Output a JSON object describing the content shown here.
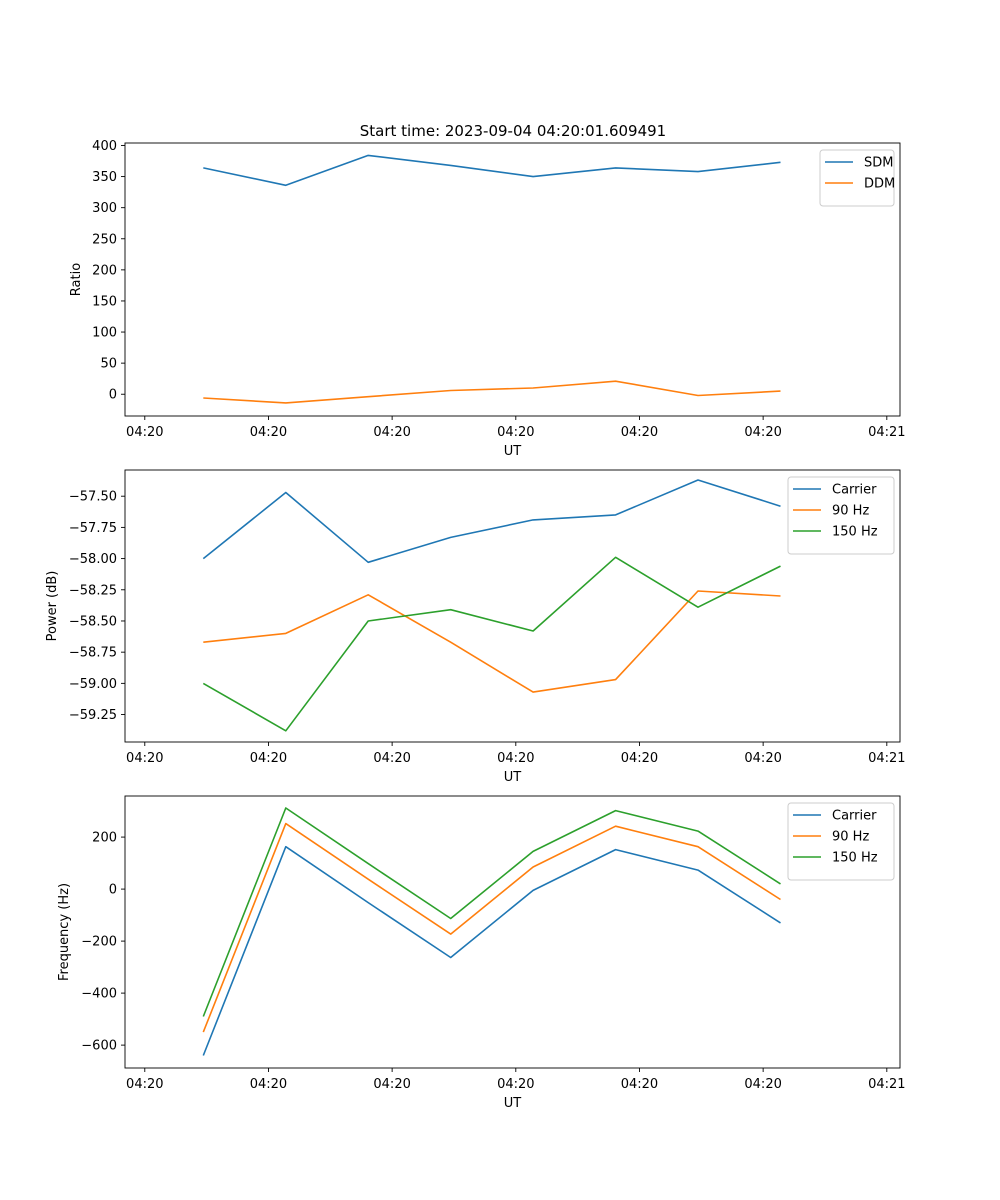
{
  "title": "Start time: 2023-09-04 04:20:01.609491",
  "colors": {
    "blue": "#1f77b4",
    "orange": "#ff7f0e",
    "green": "#2ca02c"
  },
  "chart_data": [
    {
      "type": "line",
      "xlabel": "UT",
      "ylabel": "Ratio",
      "xticks": [
        "04:20",
        "04:20",
        "04:20",
        "04:20",
        "04:20",
        "04:20",
        "04:21"
      ],
      "xlim": [
        -0.24,
        9.16
      ],
      "ylim": [
        -35,
        404
      ],
      "yticks": [
        0,
        50,
        100,
        150,
        200,
        250,
        300,
        350,
        400
      ],
      "ytick_labels": [
        "0",
        "50",
        "100",
        "150",
        "200",
        "250",
        "300",
        "350",
        "400"
      ],
      "x": [
        0.71,
        1.71,
        2.71,
        3.71,
        4.71,
        5.71,
        6.71,
        7.71
      ],
      "legend_loc": "upper-right",
      "series": [
        {
          "name": "SDM",
          "color": "#1f77b4",
          "values": [
            364,
            336,
            384,
            368,
            350,
            364,
            358,
            373
          ]
        },
        {
          "name": "DDM",
          "color": "#ff7f0e",
          "values": [
            -6,
            -14,
            -4,
            6,
            10,
            21,
            -2,
            5
          ]
        }
      ]
    },
    {
      "type": "line",
      "xlabel": "UT",
      "ylabel": "Power (dB)",
      "xticks": [
        "04:20",
        "04:20",
        "04:20",
        "04:20",
        "04:20",
        "04:20",
        "04:21"
      ],
      "xlim": [
        -0.24,
        9.16
      ],
      "ylim": [
        -59.47,
        -57.29
      ],
      "yticks": [
        -59.25,
        -59.0,
        -58.75,
        -58.5,
        -58.25,
        -58.0,
        -57.75,
        -57.5
      ],
      "ytick_labels": [
        "−59.25",
        "−59.00",
        "−58.75",
        "−58.50",
        "−58.25",
        "−58.00",
        "−57.75",
        "−57.50"
      ],
      "x": [
        0.71,
        1.71,
        2.71,
        3.71,
        4.71,
        5.71,
        6.71,
        7.71
      ],
      "legend_loc": "upper-right",
      "series": [
        {
          "name": "Carrier",
          "color": "#1f77b4",
          "values": [
            -58.0,
            -57.47,
            -58.03,
            -57.83,
            -57.69,
            -57.65,
            -57.37,
            -57.58
          ]
        },
        {
          "name": "90 Hz",
          "color": "#ff7f0e",
          "values": [
            -58.67,
            -58.6,
            -58.29,
            -58.67,
            -59.07,
            -58.97,
            -58.26,
            -58.3
          ]
        },
        {
          "name": "150 Hz",
          "color": "#2ca02c",
          "values": [
            -59.0,
            -59.38,
            -58.5,
            -58.41,
            -58.58,
            -57.99,
            -58.39,
            -58.06
          ]
        }
      ]
    },
    {
      "type": "line",
      "xlabel": "UT",
      "ylabel": "Frequency (Hz)",
      "xticks": [
        "04:20",
        "04:20",
        "04:20",
        "04:20",
        "04:20",
        "04:20",
        "04:21"
      ],
      "xlim": [
        -0.24,
        9.16
      ],
      "ylim": [
        -688,
        358
      ],
      "yticks": [
        -600,
        -400,
        -200,
        0,
        200
      ],
      "ytick_labels": [
        "−600",
        "−400",
        "−200",
        "0",
        "200"
      ],
      "x": [
        0.71,
        1.71,
        2.71,
        3.71,
        4.71,
        5.71,
        6.71,
        7.71
      ],
      "legend_loc": "upper-right",
      "series": [
        {
          "name": "Carrier",
          "color": "#1f77b4",
          "values": [
            -640,
            163,
            -52,
            -263,
            -5,
            152,
            73,
            -130
          ]
        },
        {
          "name": "90 Hz",
          "color": "#ff7f0e",
          "values": [
            -550,
            252,
            38,
            -173,
            85,
            242,
            163,
            -40
          ]
        },
        {
          "name": "150 Hz",
          "color": "#2ca02c",
          "values": [
            -490,
            312,
            98,
            -113,
            145,
            302,
            223,
            20
          ]
        }
      ]
    }
  ]
}
